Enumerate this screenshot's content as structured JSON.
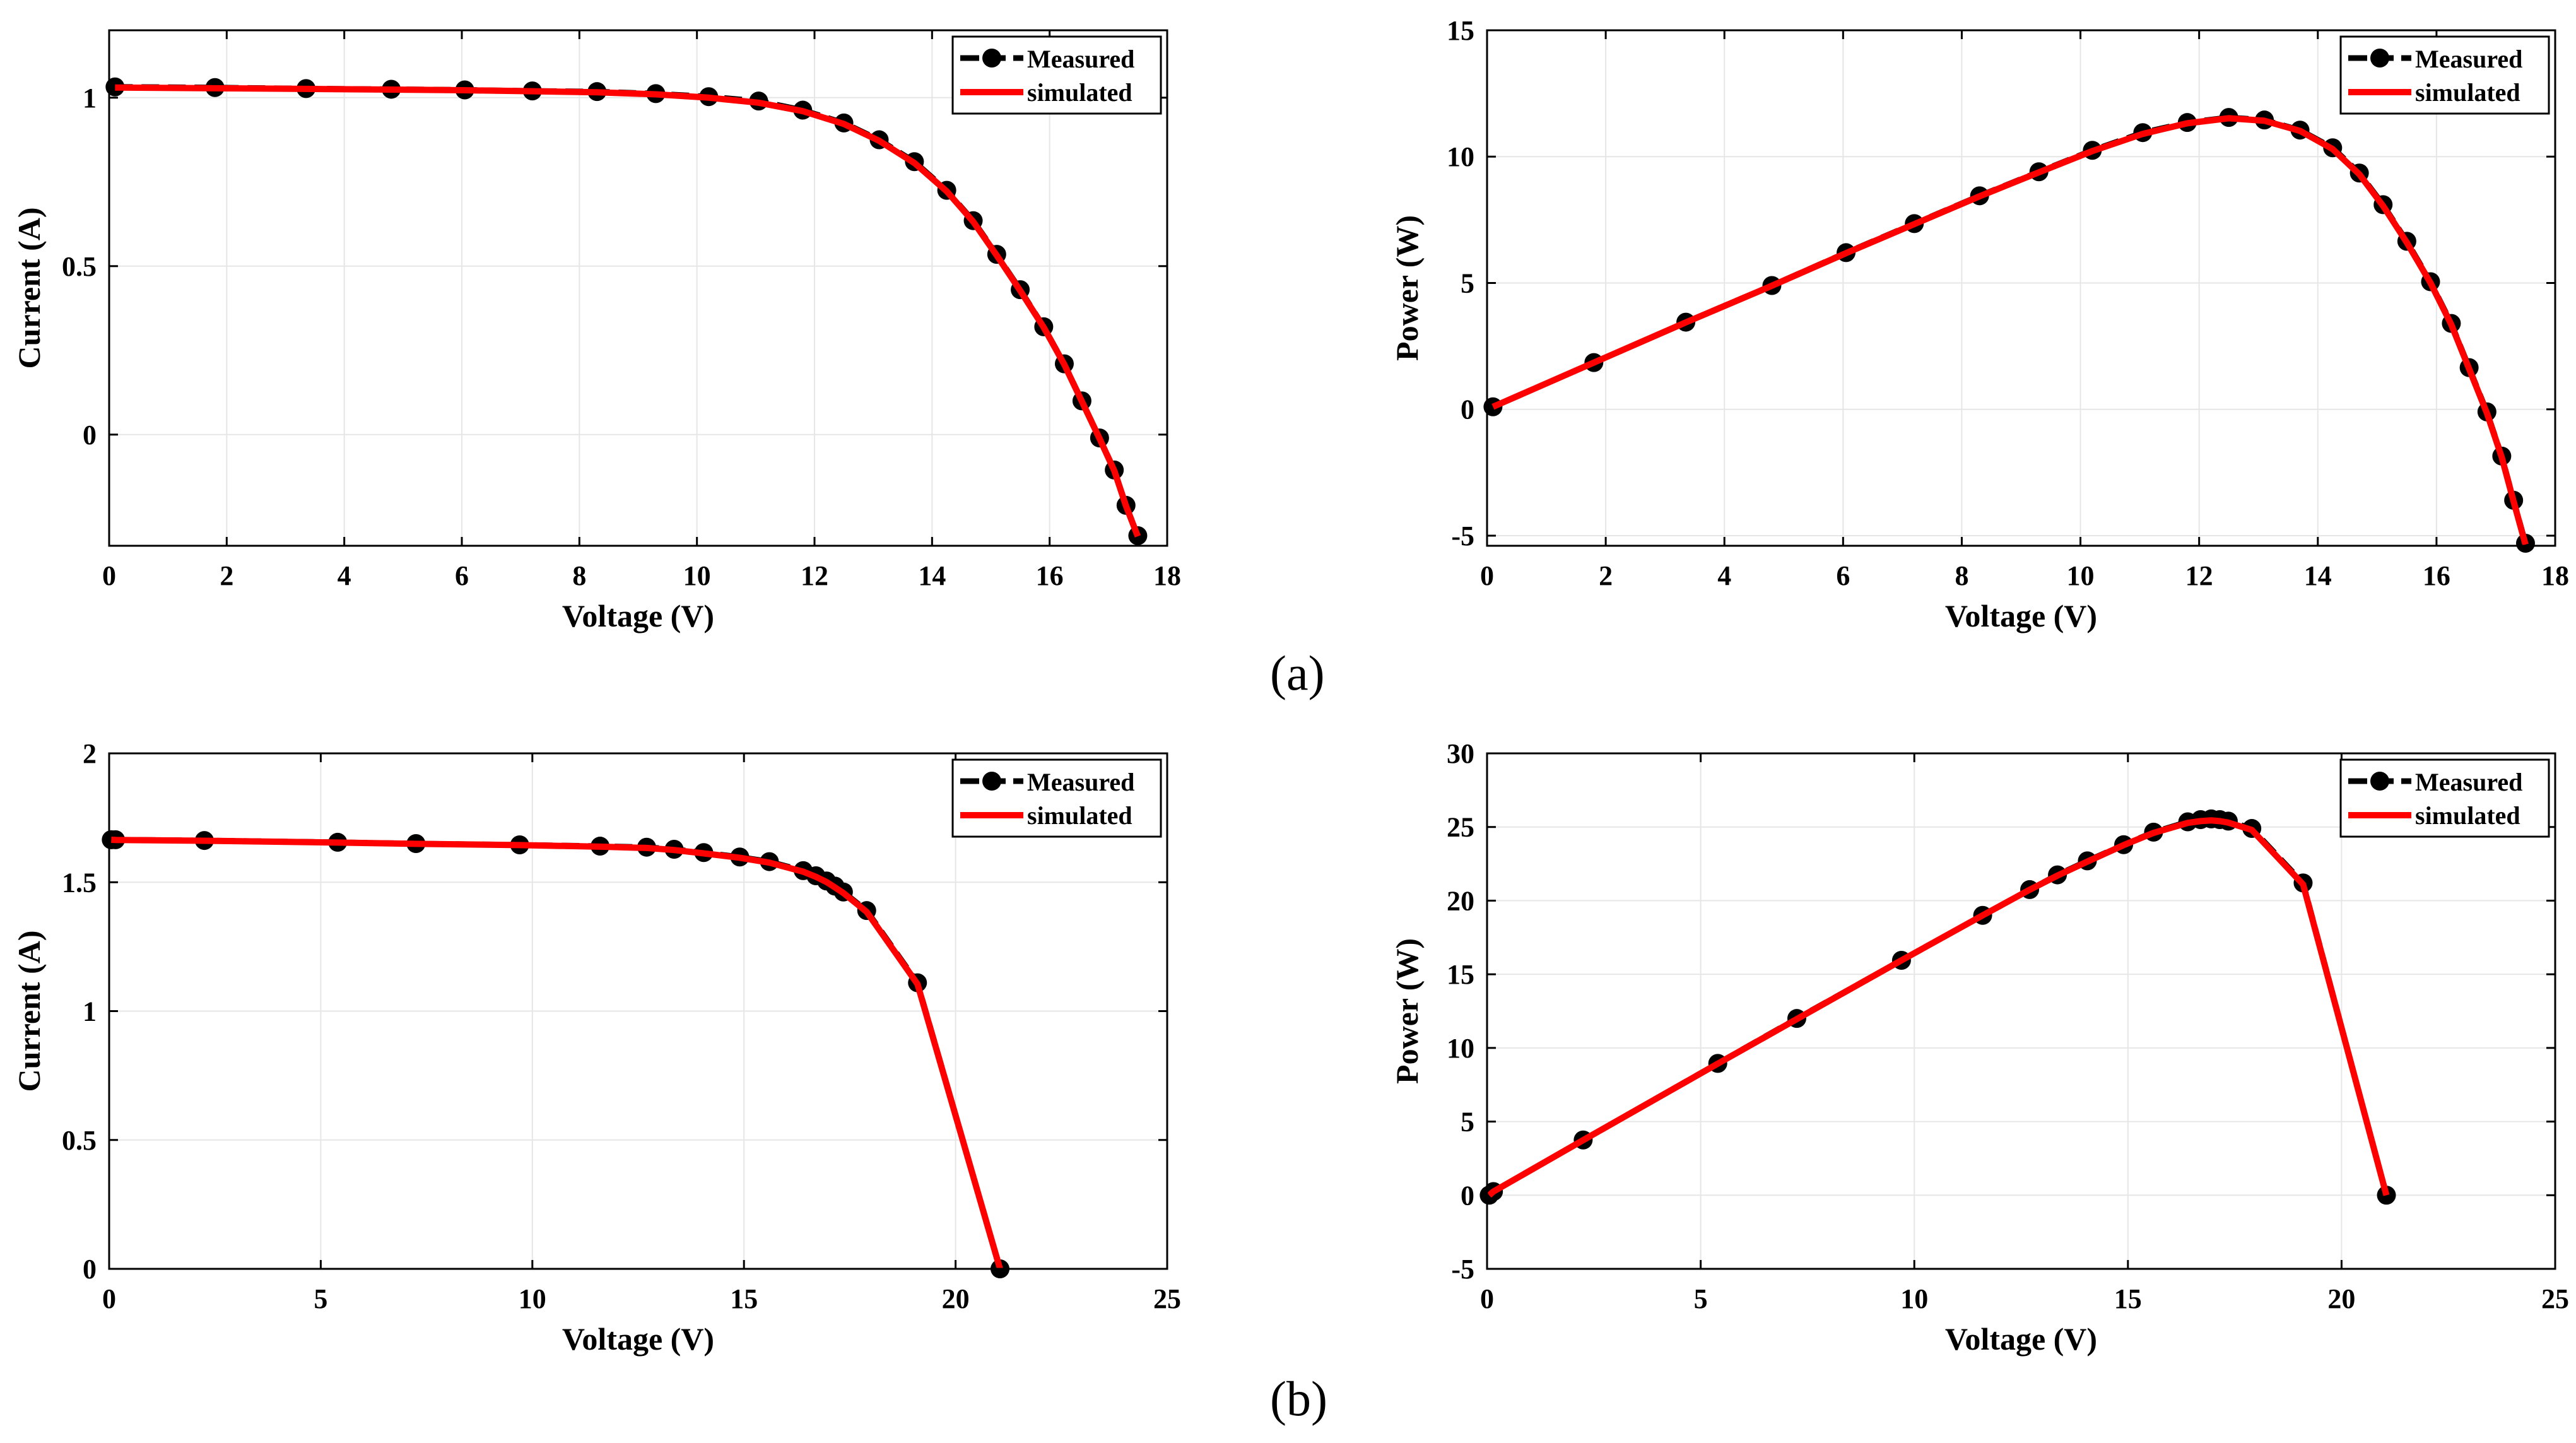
{
  "panel_labels": {
    "a": "(a)",
    "b": "(b)"
  },
  "colors": {
    "measured": "#000000",
    "simulated": "#ff0000",
    "grid": "#e6e6e6"
  },
  "chart_data": [
    {
      "id": "a-iv",
      "type": "line",
      "xlabel": "Voltage (V)",
      "ylabel": "Current (A)",
      "xlim": [
        0,
        18
      ],
      "ylim": [
        -0.33,
        1.2
      ],
      "xticks": [
        0,
        2,
        4,
        6,
        8,
        10,
        12,
        14,
        16,
        18
      ],
      "yticks": [
        0,
        0.5,
        1
      ],
      "legend": {
        "position": "top-right",
        "entries": [
          "Measured",
          "simulated"
        ]
      },
      "series": [
        {
          "name": "Measured",
          "style": "dashed-markers",
          "x": [
            0.1,
            1.8,
            3.35,
            4.8,
            6.05,
            7.2,
            8.3,
            9.3,
            10.2,
            11.05,
            11.8,
            12.5,
            13.1,
            13.7,
            14.25,
            14.7,
            15.1,
            15.5,
            15.9,
            16.25,
            16.55,
            16.85,
            17.1,
            17.3,
            17.5
          ],
          "y": [
            1.032,
            1.03,
            1.027,
            1.025,
            1.023,
            1.02,
            1.018,
            1.012,
            1.003,
            0.99,
            0.963,
            0.925,
            0.875,
            0.81,
            0.725,
            0.635,
            0.535,
            0.43,
            0.32,
            0.21,
            0.1,
            -0.01,
            -0.105,
            -0.21,
            -0.3
          ]
        },
        {
          "name": "simulated",
          "style": "solid",
          "x": [
            0.1,
            1.8,
            3.35,
            4.8,
            6.05,
            7.2,
            8.3,
            9.3,
            10.2,
            11.05,
            11.8,
            12.5,
            13.1,
            13.7,
            14.25,
            14.7,
            15.1,
            15.5,
            15.9,
            16.25,
            16.55,
            16.85,
            17.1,
            17.3,
            17.5
          ],
          "y": [
            1.03,
            1.028,
            1.026,
            1.024,
            1.022,
            1.019,
            1.016,
            1.01,
            1.0,
            0.985,
            0.96,
            0.922,
            0.872,
            0.806,
            0.722,
            0.632,
            0.532,
            0.427,
            0.318,
            0.208,
            0.098,
            -0.012,
            -0.107,
            -0.212,
            -0.302
          ]
        }
      ]
    },
    {
      "id": "a-pv",
      "type": "line",
      "xlabel": "Voltage (V)",
      "ylabel": "Power (W)",
      "xlim": [
        0,
        18
      ],
      "ylim": [
        -5.4,
        15
      ],
      "xticks": [
        0,
        2,
        4,
        6,
        8,
        10,
        12,
        14,
        16,
        18
      ],
      "yticks": [
        -5,
        0,
        5,
        10,
        15
      ],
      "legend": {
        "position": "top-right",
        "entries": [
          "Measured",
          "simulated"
        ]
      },
      "series": [
        {
          "name": "Measured",
          "style": "dashed-markers",
          "x": [
            0.1,
            1.8,
            3.35,
            4.8,
            6.05,
            7.2,
            8.3,
            9.3,
            10.2,
            11.05,
            11.8,
            12.5,
            13.1,
            13.7,
            14.25,
            14.7,
            15.1,
            15.5,
            15.9,
            16.25,
            16.55,
            16.85,
            17.1,
            17.3,
            17.5
          ],
          "y": [
            0.1,
            1.85,
            3.45,
            4.9,
            6.2,
            7.35,
            8.45,
            9.4,
            10.25,
            10.95,
            11.35,
            11.55,
            11.45,
            11.05,
            10.35,
            9.35,
            8.1,
            6.65,
            5.05,
            3.4,
            1.65,
            -0.1,
            -1.85,
            -3.6,
            -5.3
          ]
        },
        {
          "name": "simulated",
          "style": "solid",
          "x": [
            0.1,
            1.8,
            3.35,
            4.8,
            6.05,
            7.2,
            8.3,
            9.3,
            10.2,
            11.05,
            11.8,
            12.5,
            13.1,
            13.7,
            14.25,
            14.7,
            15.1,
            15.5,
            15.9,
            16.25,
            16.55,
            16.85,
            17.1,
            17.3,
            17.5
          ],
          "y": [
            0.1,
            1.85,
            3.44,
            4.89,
            6.18,
            7.33,
            8.43,
            9.38,
            10.22,
            10.9,
            11.32,
            11.52,
            11.42,
            11.02,
            10.3,
            9.3,
            8.05,
            6.6,
            5.0,
            3.35,
            1.6,
            -0.15,
            -1.9,
            -3.65,
            -5.35
          ]
        }
      ]
    },
    {
      "id": "b-iv",
      "type": "line",
      "xlabel": "Voltage (V)",
      "ylabel": "Current (A)",
      "xlim": [
        0,
        25
      ],
      "ylim": [
        0,
        2
      ],
      "xticks": [
        0,
        5,
        10,
        15,
        20,
        25
      ],
      "yticks": [
        0,
        0.5,
        1,
        1.5,
        2
      ],
      "legend": {
        "position": "top-right",
        "entries": [
          "Measured",
          "simulated"
        ]
      },
      "series": [
        {
          "name": "Measured",
          "style": "dashed-markers",
          "x": [
            0.05,
            0.15,
            2.25,
            5.4,
            7.25,
            9.7,
            11.6,
            12.7,
            13.35,
            14.05,
            14.9,
            15.6,
            16.4,
            16.7,
            16.95,
            17.15,
            17.35,
            17.9,
            19.1,
            21.05
          ],
          "y": [
            1.665,
            1.665,
            1.662,
            1.655,
            1.65,
            1.645,
            1.64,
            1.636,
            1.628,
            1.615,
            1.598,
            1.58,
            1.545,
            1.525,
            1.505,
            1.485,
            1.462,
            1.39,
            1.11,
            0.0
          ]
        },
        {
          "name": "simulated",
          "style": "solid",
          "x": [
            0.05,
            0.15,
            2.25,
            5.4,
            7.25,
            9.7,
            11.6,
            12.7,
            13.35,
            14.05,
            14.9,
            15.6,
            16.4,
            16.7,
            16.95,
            17.15,
            17.35,
            17.9,
            19.1,
            21.05
          ],
          "y": [
            1.665,
            1.664,
            1.661,
            1.654,
            1.649,
            1.644,
            1.638,
            1.633,
            1.625,
            1.612,
            1.595,
            1.576,
            1.541,
            1.521,
            1.501,
            1.48,
            1.458,
            1.385,
            1.105,
            0.0
          ]
        }
      ]
    },
    {
      "id": "b-pv",
      "type": "line",
      "xlabel": "Voltage (V)",
      "ylabel": "Power (W)",
      "xlim": [
        0,
        25
      ],
      "ylim": [
        -5,
        30
      ],
      "xticks": [
        0,
        5,
        10,
        15,
        20,
        25
      ],
      "yticks": [
        -5,
        0,
        5,
        10,
        15,
        20,
        25,
        30
      ],
      "legend": {
        "position": "top-right",
        "entries": [
          "Measured",
          "simulated"
        ]
      },
      "series": [
        {
          "name": "Measured",
          "style": "dashed-markers",
          "x": [
            0.05,
            0.15,
            2.25,
            5.4,
            7.25,
            9.7,
            11.6,
            12.7,
            13.35,
            14.05,
            14.9,
            15.6,
            16.4,
            16.7,
            16.95,
            17.15,
            17.35,
            17.9,
            19.1,
            21.05
          ],
          "y": [
            0.0,
            0.25,
            3.75,
            8.95,
            12.0,
            15.95,
            19.0,
            20.75,
            21.75,
            22.7,
            23.8,
            24.65,
            25.35,
            25.5,
            25.55,
            25.5,
            25.4,
            24.9,
            21.2,
            0.0
          ]
        },
        {
          "name": "simulated",
          "style": "solid",
          "x": [
            0.05,
            0.15,
            2.25,
            5.4,
            7.25,
            9.7,
            11.6,
            12.7,
            13.35,
            14.05,
            14.9,
            15.6,
            16.4,
            16.7,
            16.95,
            17.15,
            17.35,
            17.9,
            19.1,
            21.05
          ],
          "y": [
            0.0,
            0.25,
            3.74,
            8.93,
            11.96,
            15.95,
            19.0,
            20.74,
            21.7,
            22.65,
            23.77,
            24.6,
            25.28,
            25.4,
            25.45,
            25.4,
            25.3,
            24.8,
            21.1,
            0.0
          ]
        }
      ]
    }
  ]
}
